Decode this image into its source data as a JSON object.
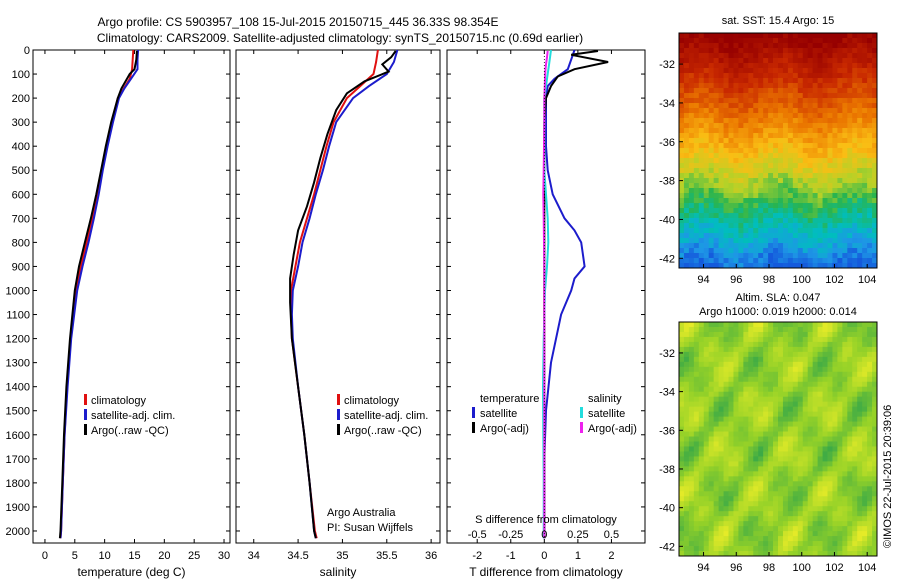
{
  "header": {
    "line1": "Argo profile: CS 5903957_108 15-Jul-2015 20150715_445 36.33S 98.354E",
    "line2": "Climatology: CARS2009. Satellite-adjusted climatology: synTS_20150715.nc (0.69d earlier)"
  },
  "credit": "©IMOS 22-Jul-2015 20:39:06",
  "colors": {
    "red": "#e01010",
    "blue": "#1c1ccc",
    "black": "#000000",
    "cyan": "#22dddd",
    "magenta": "#ee22ee"
  },
  "chart_data": [
    {
      "type": "line",
      "xlabel": "temperature (deg C)",
      "ylabel": "",
      "xlim": [
        -2,
        31
      ],
      "ylim": [
        0,
        2050
      ],
      "xticks": [
        0,
        5,
        10,
        15,
        20,
        25,
        30
      ],
      "yticks": [
        0,
        100,
        200,
        300,
        400,
        500,
        600,
        700,
        800,
        900,
        1000,
        1100,
        1200,
        1300,
        1400,
        1500,
        1600,
        1700,
        1800,
        1900,
        2000
      ],
      "legend": [
        "climatology",
        "satellite-adj. clim.",
        "Argo(..raw -QC)"
      ],
      "legend_position": "lower-center",
      "series": [
        {
          "name": "climatology",
          "color": "red",
          "depth": [
            0,
            40,
            80,
            120,
            160,
            200,
            300,
            400,
            500,
            600,
            700,
            800,
            900,
            1000,
            1200,
            1400,
            1600,
            1800,
            2000,
            2030
          ],
          "values": [
            14.8,
            14.7,
            14.6,
            14.2,
            13.2,
            12.2,
            11.2,
            10.3,
            9.5,
            8.8,
            8.0,
            7.0,
            6.0,
            5.2,
            4.3,
            3.7,
            3.3,
            3.0,
            2.7,
            2.6
          ]
        },
        {
          "name": "satellite-adj. clim.",
          "color": "blue",
          "depth": [
            0,
            40,
            80,
            120,
            160,
            200,
            300,
            400,
            500,
            600,
            700,
            800,
            900,
            1000,
            1200,
            1400,
            1600,
            1800,
            2000,
            2030
          ],
          "values": [
            15.6,
            15.5,
            15.5,
            14.4,
            13.3,
            12.4,
            11.4,
            10.5,
            9.7,
            9.0,
            8.2,
            7.3,
            6.3,
            5.4,
            4.4,
            3.8,
            3.3,
            3.0,
            2.7,
            2.6
          ]
        },
        {
          "name": "Argo(..raw -QC)",
          "color": "black",
          "depth": [
            4,
            40,
            80,
            100,
            160,
            200,
            300,
            400,
            500,
            600,
            700,
            800,
            900,
            1000,
            1200,
            1400,
            1600,
            1800,
            2000,
            2030
          ],
          "values": [
            15.4,
            15.3,
            15.0,
            14.2,
            12.8,
            12.2,
            11.1,
            10.2,
            9.4,
            8.6,
            7.7,
            6.7,
            5.7,
            5.0,
            4.2,
            3.6,
            3.2,
            2.9,
            2.6,
            2.5
          ]
        }
      ]
    },
    {
      "type": "line",
      "xlabel": "salinity",
      "ylabel": "",
      "xlim": [
        33.8,
        36.1
      ],
      "ylim": [
        0,
        2050
      ],
      "xticks": [
        34,
        34.5,
        35,
        35.5,
        36
      ],
      "legend": [
        "climatology",
        "satellite-adj. clim.",
        "Argo(..raw -QC)"
      ],
      "legend_position": "lower-center",
      "annotation": [
        "Argo Australia",
        "PI: Susan Wijffels"
      ],
      "series": [
        {
          "name": "climatology",
          "color": "red",
          "depth": [
            0,
            50,
            100,
            150,
            200,
            300,
            400,
            500,
            600,
            700,
            800,
            900,
            1000,
            1100,
            1200,
            1400,
            1600,
            1800,
            2000,
            2030
          ],
          "values": [
            35.4,
            35.38,
            35.35,
            35.2,
            35.05,
            34.9,
            34.82,
            34.75,
            34.68,
            34.6,
            34.52,
            34.47,
            34.42,
            34.42,
            34.43,
            34.5,
            34.57,
            34.63,
            34.69,
            34.71
          ]
        },
        {
          "name": "satellite-adj. clim.",
          "color": "blue",
          "depth": [
            0,
            50,
            100,
            150,
            200,
            300,
            400,
            500,
            600,
            700,
            800,
            900,
            1000,
            1100,
            1200,
            1400,
            1600,
            1800,
            2000,
            2030
          ],
          "values": [
            35.62,
            35.58,
            35.5,
            35.3,
            35.12,
            34.93,
            34.85,
            34.78,
            34.7,
            34.63,
            34.55,
            34.5,
            34.44,
            34.43,
            34.44,
            34.5,
            34.57,
            34.63,
            34.68,
            34.7
          ]
        },
        {
          "name": "Argo(..raw -QC)",
          "color": "black",
          "depth": [
            4,
            30,
            60,
            90,
            130,
            180,
            250,
            350,
            450,
            550,
            650,
            750,
            850,
            950,
            1050,
            1200,
            1400,
            1600,
            1800,
            2000,
            2030
          ],
          "values": [
            35.6,
            35.55,
            35.45,
            35.52,
            35.25,
            35.05,
            34.93,
            34.83,
            34.75,
            34.68,
            34.6,
            34.5,
            34.45,
            34.41,
            34.41,
            34.43,
            34.5,
            34.57,
            34.63,
            34.68,
            34.7
          ]
        }
      ]
    },
    {
      "type": "line",
      "xlabel": "T difference from climatology",
      "xlabel_top": "S difference from climatology",
      "xlim": [
        -2.9,
        3.0
      ],
      "ylim": [
        0,
        2050
      ],
      "xticks": [
        -2,
        -1,
        0,
        1,
        2
      ],
      "xticks_S": [
        "-0.5",
        "-0.25",
        "0",
        "0.25",
        "0.5"
      ],
      "legend_groups": [
        {
          "title": "temperature",
          "entries": [
            "satellite",
            "Argo(-adj)"
          ]
        },
        {
          "title": "salinity",
          "entries": [
            "satellite",
            "Argo(-adj)"
          ]
        }
      ],
      "series": [
        {
          "name": "T satellite",
          "color": "blue",
          "depth": [
            0,
            40,
            80,
            120,
            150,
            200,
            300,
            400,
            500,
            600,
            700,
            750,
            800,
            900,
            950,
            1000,
            1100,
            1300,
            1500,
            1700,
            1900,
            2030
          ],
          "values": [
            0.9,
            0.8,
            0.7,
            0.3,
            0.1,
            0.05,
            0.05,
            0.05,
            0.1,
            0.25,
            0.6,
            0.9,
            1.1,
            1.2,
            0.9,
            0.8,
            0.5,
            0.2,
            0.05,
            0.0,
            0.0,
            0.0
          ]
        },
        {
          "name": "T Argo(-adj)",
          "color": "black",
          "depth": [
            4,
            20,
            50,
            80,
            110,
            150,
            200,
            300,
            400,
            500,
            600,
            800,
            1000,
            1400,
            2030
          ],
          "values": [
            1.6,
            0.8,
            1.9,
            0.9,
            0.4,
            0.2,
            0.05,
            0.0,
            0.0,
            0.0,
            0.0,
            0.0,
            0.0,
            0.0,
            0.0
          ]
        },
        {
          "name": "S satellite",
          "color": "cyan",
          "depth": [
            0,
            50,
            100,
            150,
            200,
            300,
            400,
            500,
            600,
            700,
            800,
            900,
            1000,
            1200,
            1400,
            1600,
            1800,
            2000,
            2030
          ],
          "values": [
            0.2,
            0.15,
            0.1,
            0.05,
            0.0,
            0.0,
            0.0,
            0.0,
            0.05,
            0.1,
            0.12,
            0.08,
            0.02,
            -0.02,
            -0.04,
            -0.03,
            -0.02,
            -0.02,
            -0.02
          ]
        },
        {
          "name": "S Argo(-adj)",
          "color": "magenta",
          "depth": [
            4,
            30,
            60,
            90,
            120,
            160,
            200,
            300,
            400,
            500,
            600,
            700,
            800,
            900,
            1000,
            1200,
            1400,
            1600,
            2030
          ],
          "values": [
            0.1,
            0.08,
            0.05,
            0.03,
            0.02,
            0.01,
            0.0,
            0.0,
            -0.01,
            -0.02,
            -0.03,
            -0.02,
            -0.01,
            0.0,
            0.0,
            0.0,
            0.0,
            0.0,
            0.0
          ]
        }
      ]
    },
    {
      "type": "heatmap",
      "title": "sat. SST: 15.4  Argo: 15",
      "xticks": [
        94,
        96,
        98,
        100,
        102,
        104
      ],
      "yticks": [
        -32,
        -34,
        -36,
        -38,
        -40,
        -42
      ],
      "xlim": [
        92.5,
        104.6
      ],
      "ylim": [
        -42.5,
        -30.4
      ]
    },
    {
      "type": "heatmap",
      "title_line1": "Altim. SLA: 0.047",
      "title_line2": "Argo h1000: 0.019 h2000: 0.014",
      "xticks": [
        94,
        96,
        98,
        100,
        102,
        104
      ],
      "yticks": [
        -32,
        -34,
        -36,
        -38,
        -40,
        -42
      ],
      "xlim": [
        92.5,
        104.6
      ],
      "ylim": [
        -42.5,
        -30.4
      ]
    }
  ]
}
